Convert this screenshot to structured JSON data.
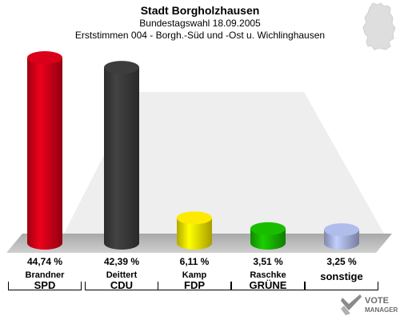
{
  "header": {
    "title": "Stadt Borgholzhausen",
    "subtitle": "Bundestagswahl 18.09.2005",
    "subtitle2": "Erststimmen 004 - Borgh.-Süd und -Ost u. Wichlinghausen"
  },
  "chart_data": {
    "type": "bar",
    "title": "Stadt Borgholzhausen",
    "categories": [
      "SPD",
      "CDU",
      "FDP",
      "GRÜNE",
      "sonstige"
    ],
    "candidates": [
      "Brandner",
      "Deittert",
      "Kamp",
      "Raschke",
      ""
    ],
    "values": [
      44.74,
      42.39,
      6.11,
      3.51,
      3.25
    ],
    "value_labels": [
      "44,74 %",
      "42,39 %",
      "6,11 %",
      "3,51 %",
      "3,25 %"
    ],
    "colors": [
      "#d00018",
      "#3a3a3a",
      "#f0e000",
      "#18b400",
      "#a8b4e0"
    ],
    "ylim": [
      0,
      50
    ]
  },
  "logo": {
    "line1": "VOTE",
    "line2": "MANAGER"
  }
}
